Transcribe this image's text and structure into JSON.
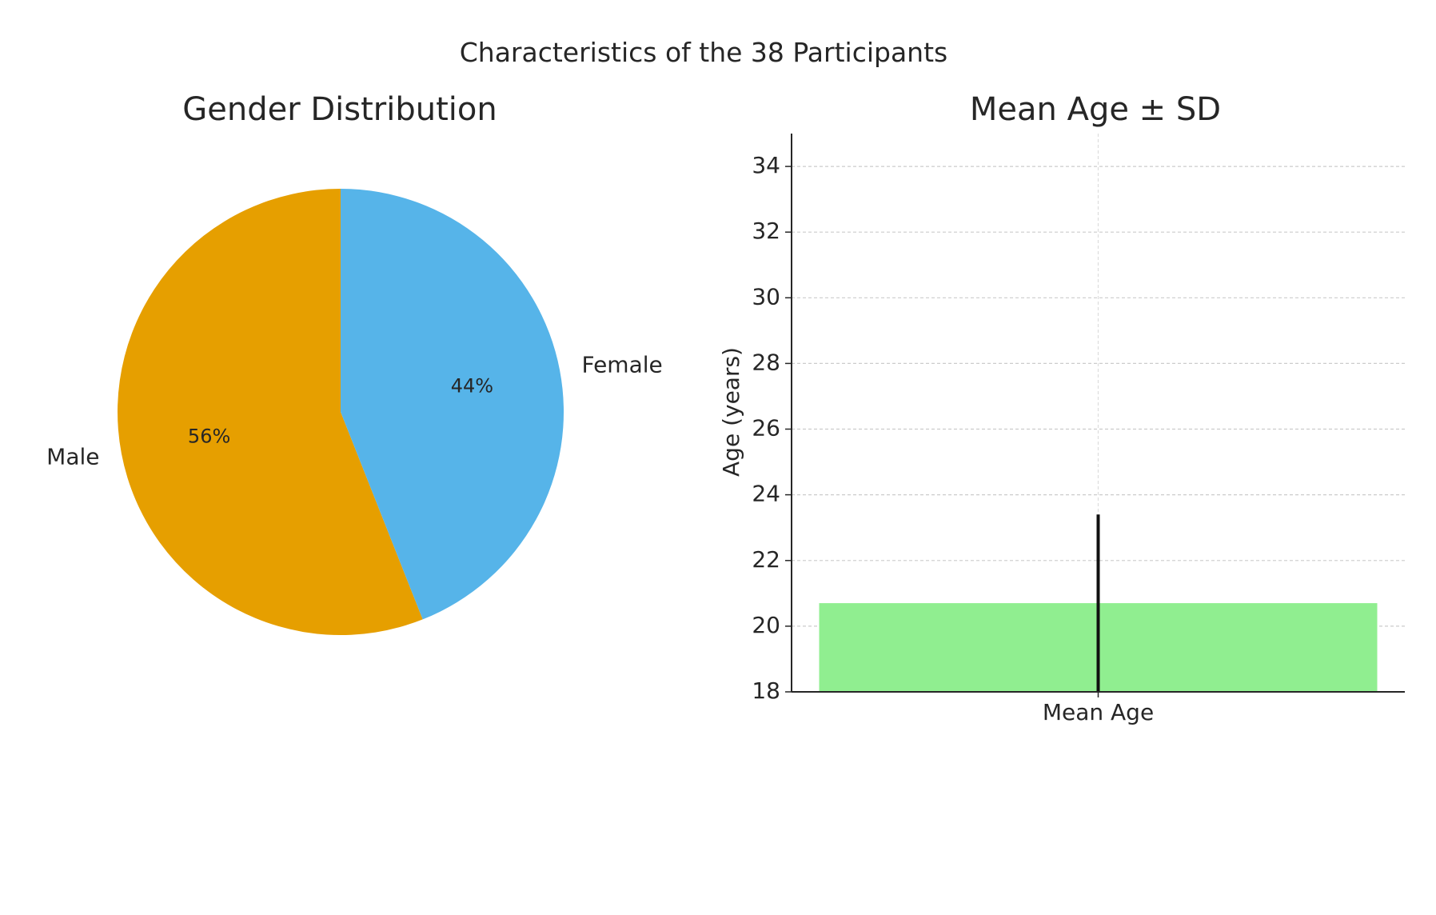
{
  "figure": {
    "suptitle": "Characteristics of the 38 Participants"
  },
  "chart_data": [
    {
      "type": "pie",
      "title": "Gender Distribution",
      "labels": [
        "Male",
        "Female"
      ],
      "values": [
        56,
        44
      ],
      "percent_labels": [
        "56%",
        "44%"
      ],
      "colors": [
        "#E69F00",
        "#56B4E9"
      ],
      "start_angle_deg": 90,
      "direction": "counterclockwise"
    },
    {
      "type": "bar",
      "title": "Mean Age ± SD",
      "categories": [
        "Mean Age"
      ],
      "values": [
        20.7
      ],
      "error": [
        2.7
      ],
      "xlabel": "",
      "ylabel": "Age (years)",
      "ylim": [
        18,
        35
      ],
      "yticks": [
        18,
        20,
        22,
        24,
        26,
        28,
        30,
        32,
        34
      ],
      "bar_color": "#90EE90",
      "grid": true
    }
  ]
}
